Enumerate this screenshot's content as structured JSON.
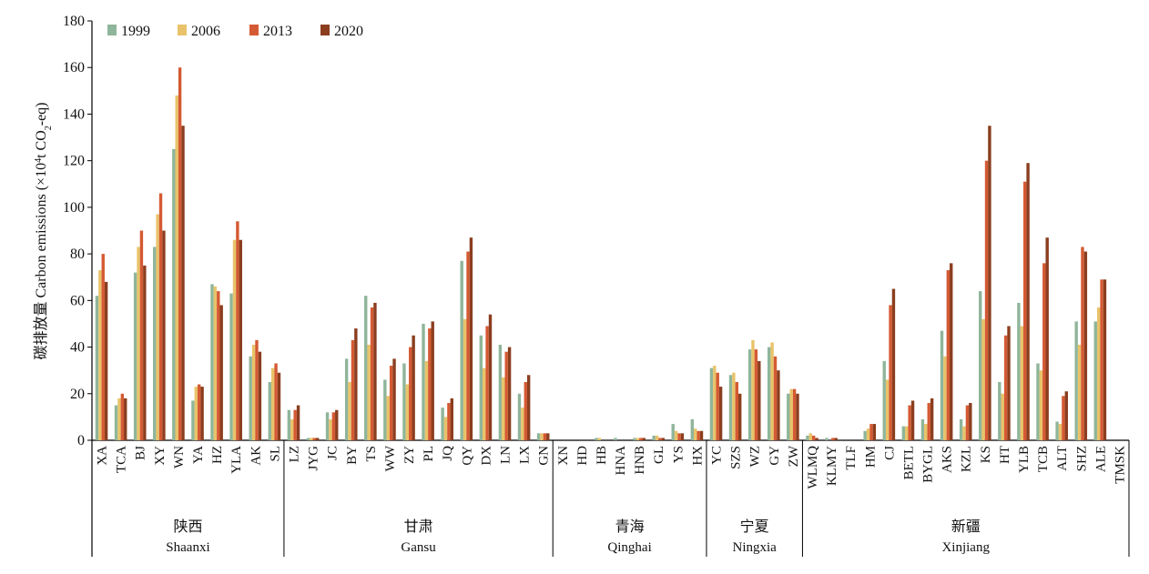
{
  "chart_data": {
    "type": "bar",
    "ylabel_cn": "碳排放量",
    "ylabel_en": "Carbon emissions (×10",
    "ylabel_sup": "4",
    "ylabel_mid": "t CO",
    "ylabel_sub": "2",
    "ylabel_end": "-eq)",
    "ylim": [
      0,
      180
    ],
    "yticks": [
      0,
      20,
      40,
      60,
      80,
      100,
      120,
      140,
      160,
      180
    ],
    "legend_position": "top-left",
    "series": [
      {
        "name": "1999",
        "color": "#8fb59a"
      },
      {
        "name": "2006",
        "color": "#e8c36a"
      },
      {
        "name": "2013",
        "color": "#d45a33"
      },
      {
        "name": "2020",
        "color": "#8b3e1f"
      }
    ],
    "groups": [
      {
        "name_cn": "陕西",
        "name_en": "Shaanxi",
        "categories": [
          {
            "label": "XA",
            "values": [
              62,
              73,
              80,
              68
            ]
          },
          {
            "label": "TCA",
            "values": [
              15,
              18,
              20,
              18
            ]
          },
          {
            "label": "BJ",
            "values": [
              72,
              83,
              90,
              75
            ]
          },
          {
            "label": "XY",
            "values": [
              83,
              97,
              106,
              90
            ]
          },
          {
            "label": "WN",
            "values": [
              125,
              148,
              160,
              135
            ]
          },
          {
            "label": "YA",
            "values": [
              17,
              23,
              24,
              23
            ]
          },
          {
            "label": "HZ",
            "values": [
              67,
              66,
              64,
              58
            ]
          },
          {
            "label": "YLA",
            "values": [
              63,
              86,
              94,
              86
            ]
          },
          {
            "label": "AK",
            "values": [
              36,
              41,
              43,
              38
            ]
          },
          {
            "label": "SL",
            "values": [
              25,
              31,
              33,
              29
            ]
          }
        ]
      },
      {
        "name_cn": "甘肃",
        "name_en": "Gansu",
        "categories": [
          {
            "label": "LZ",
            "values": [
              13,
              9,
              13,
              15
            ]
          },
          {
            "label": "JYG",
            "values": [
              1,
              1,
              1,
              1
            ]
          },
          {
            "label": "JC",
            "values": [
              12,
              9,
              12,
              13
            ]
          },
          {
            "label": "BY",
            "values": [
              35,
              25,
              43,
              48
            ]
          },
          {
            "label": "TS",
            "values": [
              62,
              41,
              57,
              59
            ]
          },
          {
            "label": "WW",
            "values": [
              26,
              19,
              32,
              35
            ]
          },
          {
            "label": "ZY",
            "values": [
              33,
              24,
              40,
              45
            ]
          },
          {
            "label": "PL",
            "values": [
              50,
              34,
              48,
              51
            ]
          },
          {
            "label": "JQ",
            "values": [
              14,
              10,
              16,
              18
            ]
          },
          {
            "label": "QY",
            "values": [
              77,
              52,
              81,
              87
            ]
          },
          {
            "label": "DX",
            "values": [
              45,
              31,
              49,
              54
            ]
          },
          {
            "label": "LN",
            "values": [
              41,
              27,
              38,
              40
            ]
          },
          {
            "label": "LX",
            "values": [
              20,
              14,
              25,
              28
            ]
          },
          {
            "label": "GN",
            "values": [
              3,
              3,
              3,
              3
            ]
          }
        ]
      },
      {
        "name_cn": "青海",
        "name_en": "Qinghai",
        "categories": [
          {
            "label": "XN",
            "values": [
              0,
              0,
              0,
              0
            ]
          },
          {
            "label": "HD",
            "values": [
              0,
              0,
              0,
              0
            ]
          },
          {
            "label": "HB",
            "values": [
              1,
              1,
              0,
              0
            ]
          },
          {
            "label": "HNA",
            "values": [
              1,
              0,
              0,
              0
            ]
          },
          {
            "label": "HNB",
            "values": [
              1,
              1,
              1,
              1
            ]
          },
          {
            "label": "GL",
            "values": [
              2,
              2,
              1,
              1
            ]
          },
          {
            "label": "YS",
            "values": [
              7,
              4,
              3,
              3
            ]
          },
          {
            "label": "HX",
            "values": [
              9,
              5,
              4,
              4
            ]
          }
        ]
      },
      {
        "name_cn": "宁夏",
        "name_en": "Ningxia",
        "categories": [
          {
            "label": "YC",
            "values": [
              31,
              32,
              29,
              23
            ]
          },
          {
            "label": "SZS",
            "values": [
              28,
              29,
              25,
              20
            ]
          },
          {
            "label": "WZ",
            "values": [
              39,
              43,
              39,
              34
            ]
          },
          {
            "label": "GY",
            "values": [
              40,
              42,
              36,
              30
            ]
          },
          {
            "label": "ZW",
            "values": [
              20,
              22,
              22,
              20
            ]
          }
        ]
      },
      {
        "name_cn": "新疆",
        "name_en": "Xinjiang",
        "categories": [
          {
            "label": "WLMQ",
            "values": [
              2,
              3,
              2,
              1
            ]
          },
          {
            "label": "KLMY",
            "values": [
              1,
              0,
              1,
              1
            ]
          },
          {
            "label": "TLF",
            "values": [
              0,
              0,
              0,
              0
            ]
          },
          {
            "label": "HM",
            "values": [
              4,
              5,
              7,
              7
            ]
          },
          {
            "label": "CJ",
            "values": [
              34,
              26,
              58,
              65
            ]
          },
          {
            "label": "BETL",
            "values": [
              6,
              6,
              15,
              17
            ]
          },
          {
            "label": "BYGL",
            "values": [
              9,
              7,
              16,
              18
            ]
          },
          {
            "label": "AKS",
            "values": [
              47,
              36,
              73,
              76
            ]
          },
          {
            "label": "KZL",
            "values": [
              9,
              6,
              15,
              16
            ]
          },
          {
            "label": "KS",
            "values": [
              64,
              52,
              120,
              135
            ]
          },
          {
            "label": "HT",
            "values": [
              25,
              20,
              45,
              49
            ]
          },
          {
            "label": "YLB",
            "values": [
              59,
              49,
              111,
              119
            ]
          },
          {
            "label": "TCB",
            "values": [
              33,
              30,
              76,
              87
            ]
          },
          {
            "label": "ALT",
            "values": [
              8,
              7,
              19,
              21
            ]
          },
          {
            "label": "SHZ",
            "values": [
              51,
              41,
              83,
              81
            ]
          },
          {
            "label": "ALE",
            "values": [
              51,
              57,
              69,
              69
            ]
          },
          {
            "label": "TMSK",
            "values": [
              0,
              0,
              0,
              0
            ]
          }
        ]
      }
    ]
  }
}
